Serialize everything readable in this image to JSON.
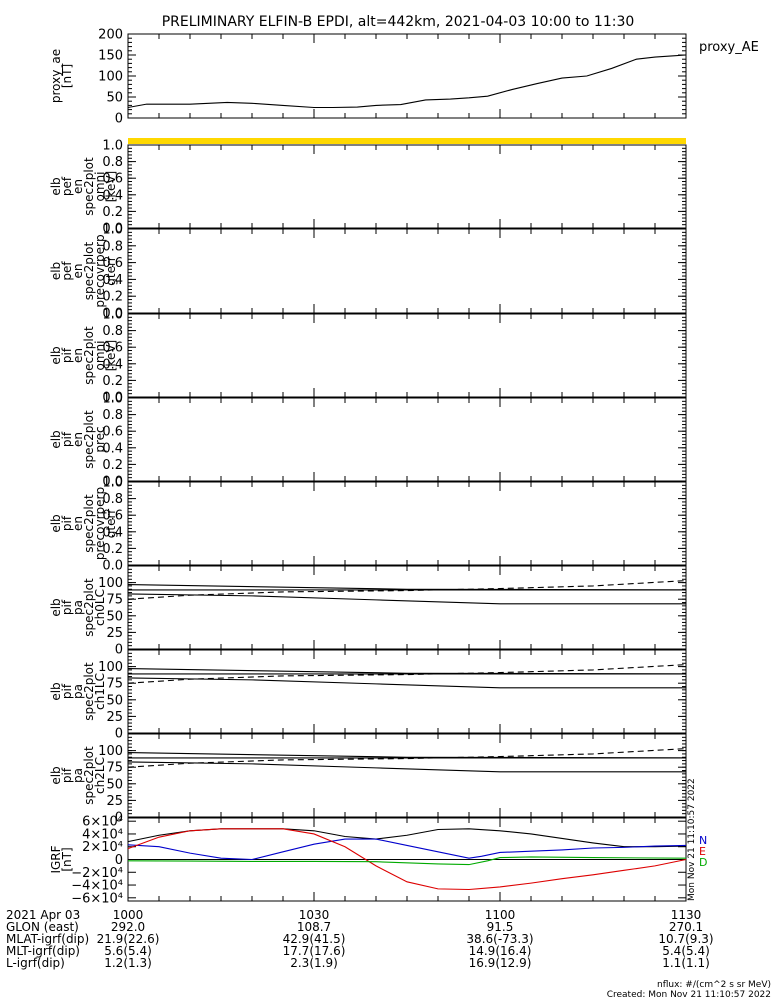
{
  "title": "PRELIMINARY ELFIN-B EPDI, alt=442km, 2021-04-03 10:00 to 11:30",
  "chart_data": [
    {
      "type": "line",
      "ylabel": [
        "proxy_ae",
        "[nT]"
      ],
      "ylim": [
        0,
        200
      ],
      "yticks": [
        "0",
        "50",
        "100",
        "150",
        "200"
      ],
      "series": [
        {
          "name": "proxy_AE",
          "color": "#000000",
          "x": [
            0,
            3,
            6,
            10,
            16,
            20,
            25,
            30,
            33,
            37,
            40,
            44,
            48,
            52,
            55,
            58,
            62,
            66,
            70,
            74,
            78,
            82,
            85,
            88,
            90
          ],
          "y": [
            25,
            33,
            33,
            33,
            37,
            35,
            30,
            25,
            25,
            26,
            30,
            32,
            43,
            45,
            48,
            52,
            68,
            82,
            95,
            100,
            118,
            140,
            145,
            148,
            150
          ]
        }
      ]
    },
    {
      "type": "line",
      "ylabel": [
        "elb",
        "pef",
        "en",
        "spec2plot",
        "omni",
        "[keV]"
      ],
      "ylim": [
        0,
        1.0
      ],
      "yticks": [
        "0.0",
        "0.2",
        "0.4",
        "0.6",
        "0.8",
        "1.0"
      ],
      "series": []
    },
    {
      "type": "line",
      "ylabel": [
        "elb",
        "pef",
        "en",
        "spec2plot",
        "precovrperp",
        "gterr"
      ],
      "ylim": [
        0,
        1.0
      ],
      "yticks": [
        "0.0",
        "0.2",
        "0.4",
        "0.6",
        "0.8",
        "1.0"
      ],
      "series": []
    },
    {
      "type": "line",
      "ylabel": [
        "elb",
        "pif",
        "en",
        "spec2plot",
        "omni",
        "[keV]"
      ],
      "ylim": [
        0,
        1.0
      ],
      "yticks": [
        "0.0",
        "0.2",
        "0.4",
        "0.6",
        "0.8",
        "1.0"
      ],
      "series": []
    },
    {
      "type": "line",
      "ylabel": [
        "elb",
        "pif",
        "en",
        "spec2plot",
        "prec"
      ],
      "ylim": [
        0,
        1.0
      ],
      "yticks": [
        "0.0",
        "0.2",
        "0.4",
        "0.6",
        "0.8",
        "1.0"
      ],
      "series": []
    },
    {
      "type": "line",
      "ylabel": [
        "elb",
        "pif",
        "en",
        "spec2plot",
        "precovrperp",
        "gterr"
      ],
      "ylim": [
        0,
        1.0
      ],
      "yticks": [
        "0.0",
        "0.2",
        "0.4",
        "0.6",
        "0.8",
        "1.0"
      ],
      "series": []
    },
    {
      "type": "line",
      "ylabel": [
        "elb",
        "pif",
        "pa",
        "spec2plot",
        "ch0LC"
      ],
      "ylim": [
        0,
        125
      ],
      "yticks": [
        "0",
        "25",
        "50",
        "75",
        "100"
      ],
      "series": [
        {
          "x": [
            0,
            45,
            90
          ],
          "y": [
            97,
            90,
            89
          ],
          "color": "#000000",
          "dash": false
        },
        {
          "x": [
            0,
            45,
            90
          ],
          "y": [
            89,
            89,
            89
          ],
          "color": "#000000",
          "dash": false
        },
        {
          "x": [
            0,
            20,
            40,
            60,
            90
          ],
          "y": [
            83,
            80,
            74,
            68,
            68
          ],
          "color": "#000000",
          "dash": false
        },
        {
          "x": [
            0,
            10,
            25,
            45,
            60,
            75,
            90
          ],
          "y": [
            75,
            81,
            86,
            88,
            91,
            95,
            103
          ],
          "color": "#000000",
          "dash": true
        }
      ]
    },
    {
      "type": "line",
      "ylabel": [
        "elb",
        "pif",
        "pa",
        "spec2plot",
        "ch1LC"
      ],
      "ylim": [
        0,
        125
      ],
      "yticks": [
        "0",
        "25",
        "50",
        "75",
        "100"
      ],
      "series": [
        {
          "x": [
            0,
            45,
            90
          ],
          "y": [
            97,
            90,
            89
          ],
          "color": "#000000",
          "dash": false
        },
        {
          "x": [
            0,
            45,
            90
          ],
          "y": [
            89,
            89,
            89
          ],
          "color": "#000000",
          "dash": false
        },
        {
          "x": [
            0,
            20,
            40,
            60,
            90
          ],
          "y": [
            83,
            80,
            74,
            68,
            68
          ],
          "color": "#000000",
          "dash": false
        },
        {
          "x": [
            0,
            10,
            25,
            45,
            60,
            75,
            90
          ],
          "y": [
            75,
            81,
            86,
            88,
            91,
            95,
            103
          ],
          "color": "#000000",
          "dash": true
        }
      ]
    },
    {
      "type": "line",
      "ylabel": [
        "elb",
        "pif",
        "pa",
        "spec2plot",
        "ch2LC"
      ],
      "ylim": [
        0,
        125
      ],
      "yticks": [
        "0",
        "25",
        "50",
        "75",
        "100"
      ],
      "series": [
        {
          "x": [
            0,
            45,
            90
          ],
          "y": [
            97,
            90,
            89
          ],
          "color": "#000000",
          "dash": false
        },
        {
          "x": [
            0,
            45,
            90
          ],
          "y": [
            89,
            89,
            89
          ],
          "color": "#000000",
          "dash": false
        },
        {
          "x": [
            0,
            20,
            40,
            60,
            90
          ],
          "y": [
            83,
            80,
            74,
            68,
            68
          ],
          "color": "#000000",
          "dash": false
        },
        {
          "x": [
            0,
            10,
            25,
            45,
            60,
            75,
            90
          ],
          "y": [
            75,
            81,
            86,
            88,
            91,
            95,
            103
          ],
          "color": "#000000",
          "dash": true
        }
      ]
    },
    {
      "type": "line",
      "ylabel": [
        "IGRF",
        "[nT]"
      ],
      "ylim": [
        -65000,
        65000
      ],
      "yticks": [
        "6×10⁴",
        "4×10⁴",
        "2×10⁴",
        "0",
        "−2×10⁴",
        "−4×10⁴",
        "−6×10⁴"
      ],
      "yticks_values": [
        60000,
        40000,
        20000,
        0,
        -20000,
        -40000,
        -60000
      ],
      "legend": [
        "N",
        "E",
        "D"
      ],
      "legend_colors": [
        "#0000cc",
        "#dd0000",
        "#00aa00"
      ],
      "series": [
        {
          "color": "#000000",
          "x": [
            0,
            5,
            10,
            15,
            20,
            25,
            30,
            35,
            40,
            45,
            50,
            55,
            60,
            65,
            70,
            75,
            80,
            85,
            90
          ],
          "y": [
            28000,
            38000,
            45000,
            48000,
            48000,
            48000,
            45000,
            36000,
            32000,
            38000,
            47000,
            48000,
            45000,
            40000,
            33000,
            26000,
            20000,
            20000,
            21000
          ]
        },
        {
          "color": "#0000cc",
          "x": [
            0,
            5,
            10,
            15,
            20,
            25,
            30,
            35,
            40,
            45,
            50,
            55,
            57,
            60,
            65,
            70,
            75,
            80,
            85,
            90
          ],
          "y": [
            23000,
            20000,
            10000,
            2000,
            0,
            12000,
            24000,
            32000,
            32000,
            22000,
            12000,
            2000,
            5000,
            11000,
            13000,
            15000,
            18000,
            19000,
            21000,
            22000
          ]
        },
        {
          "color": "#dd0000",
          "x": [
            0,
            5,
            10,
            15,
            20,
            25,
            30,
            35,
            40,
            45,
            50,
            55,
            60,
            65,
            70,
            75,
            80,
            85,
            90
          ],
          "y": [
            17000,
            35000,
            45000,
            48000,
            48000,
            48000,
            40000,
            20000,
            -10000,
            -35000,
            -46000,
            -47000,
            -43000,
            -37000,
            -30000,
            -24000,
            -17000,
            -10000,
            0
          ]
        },
        {
          "color": "#00aa00",
          "x": [
            0,
            10,
            20,
            30,
            40,
            50,
            55,
            58,
            60,
            65,
            75,
            90
          ],
          "y": [
            -2000,
            -2500,
            -3000,
            -3000,
            -3500,
            -7000,
            -8000,
            -2000,
            3000,
            4000,
            3000,
            2000
          ]
        }
      ]
    }
  ],
  "x_ticks": [
    "1000",
    "1030",
    "1100",
    "1130"
  ],
  "footer": {
    "rows": [
      {
        "label": "2021 Apr 03",
        "values": [
          "1000",
          "1030",
          "1100",
          "1130"
        ]
      },
      {
        "label": "GLON (east)",
        "values": [
          "292.0",
          "108.7",
          "91.5",
          "270.1"
        ]
      },
      {
        "label": "MLAT-igrf(dip)",
        "values": [
          "21.9(22.6)",
          "42.9(41.5)",
          "38.6(-73.3)",
          "10.7(9.3)"
        ]
      },
      {
        "label": "MLT-igrf(dip)",
        "values": [
          "5.6(5.4)",
          "17.7(17.6)",
          "14.9(16.4)",
          "5.4(5.4)"
        ]
      },
      {
        "label": "L-igrf(dip)",
        "values": [
          "1.2(1.3)",
          "2.3(1.9)",
          "16.9(12.9)",
          "1.1(1.1)"
        ]
      }
    ],
    "nflux": "nflux: #/(cm^2 s sr MeV)",
    "created": "Created: Mon Nov 21 11:10:57 2022",
    "side_stamp": "Mon Nov 21 11:10:57 2022"
  },
  "colors": {
    "bar": "#ffd800"
  }
}
